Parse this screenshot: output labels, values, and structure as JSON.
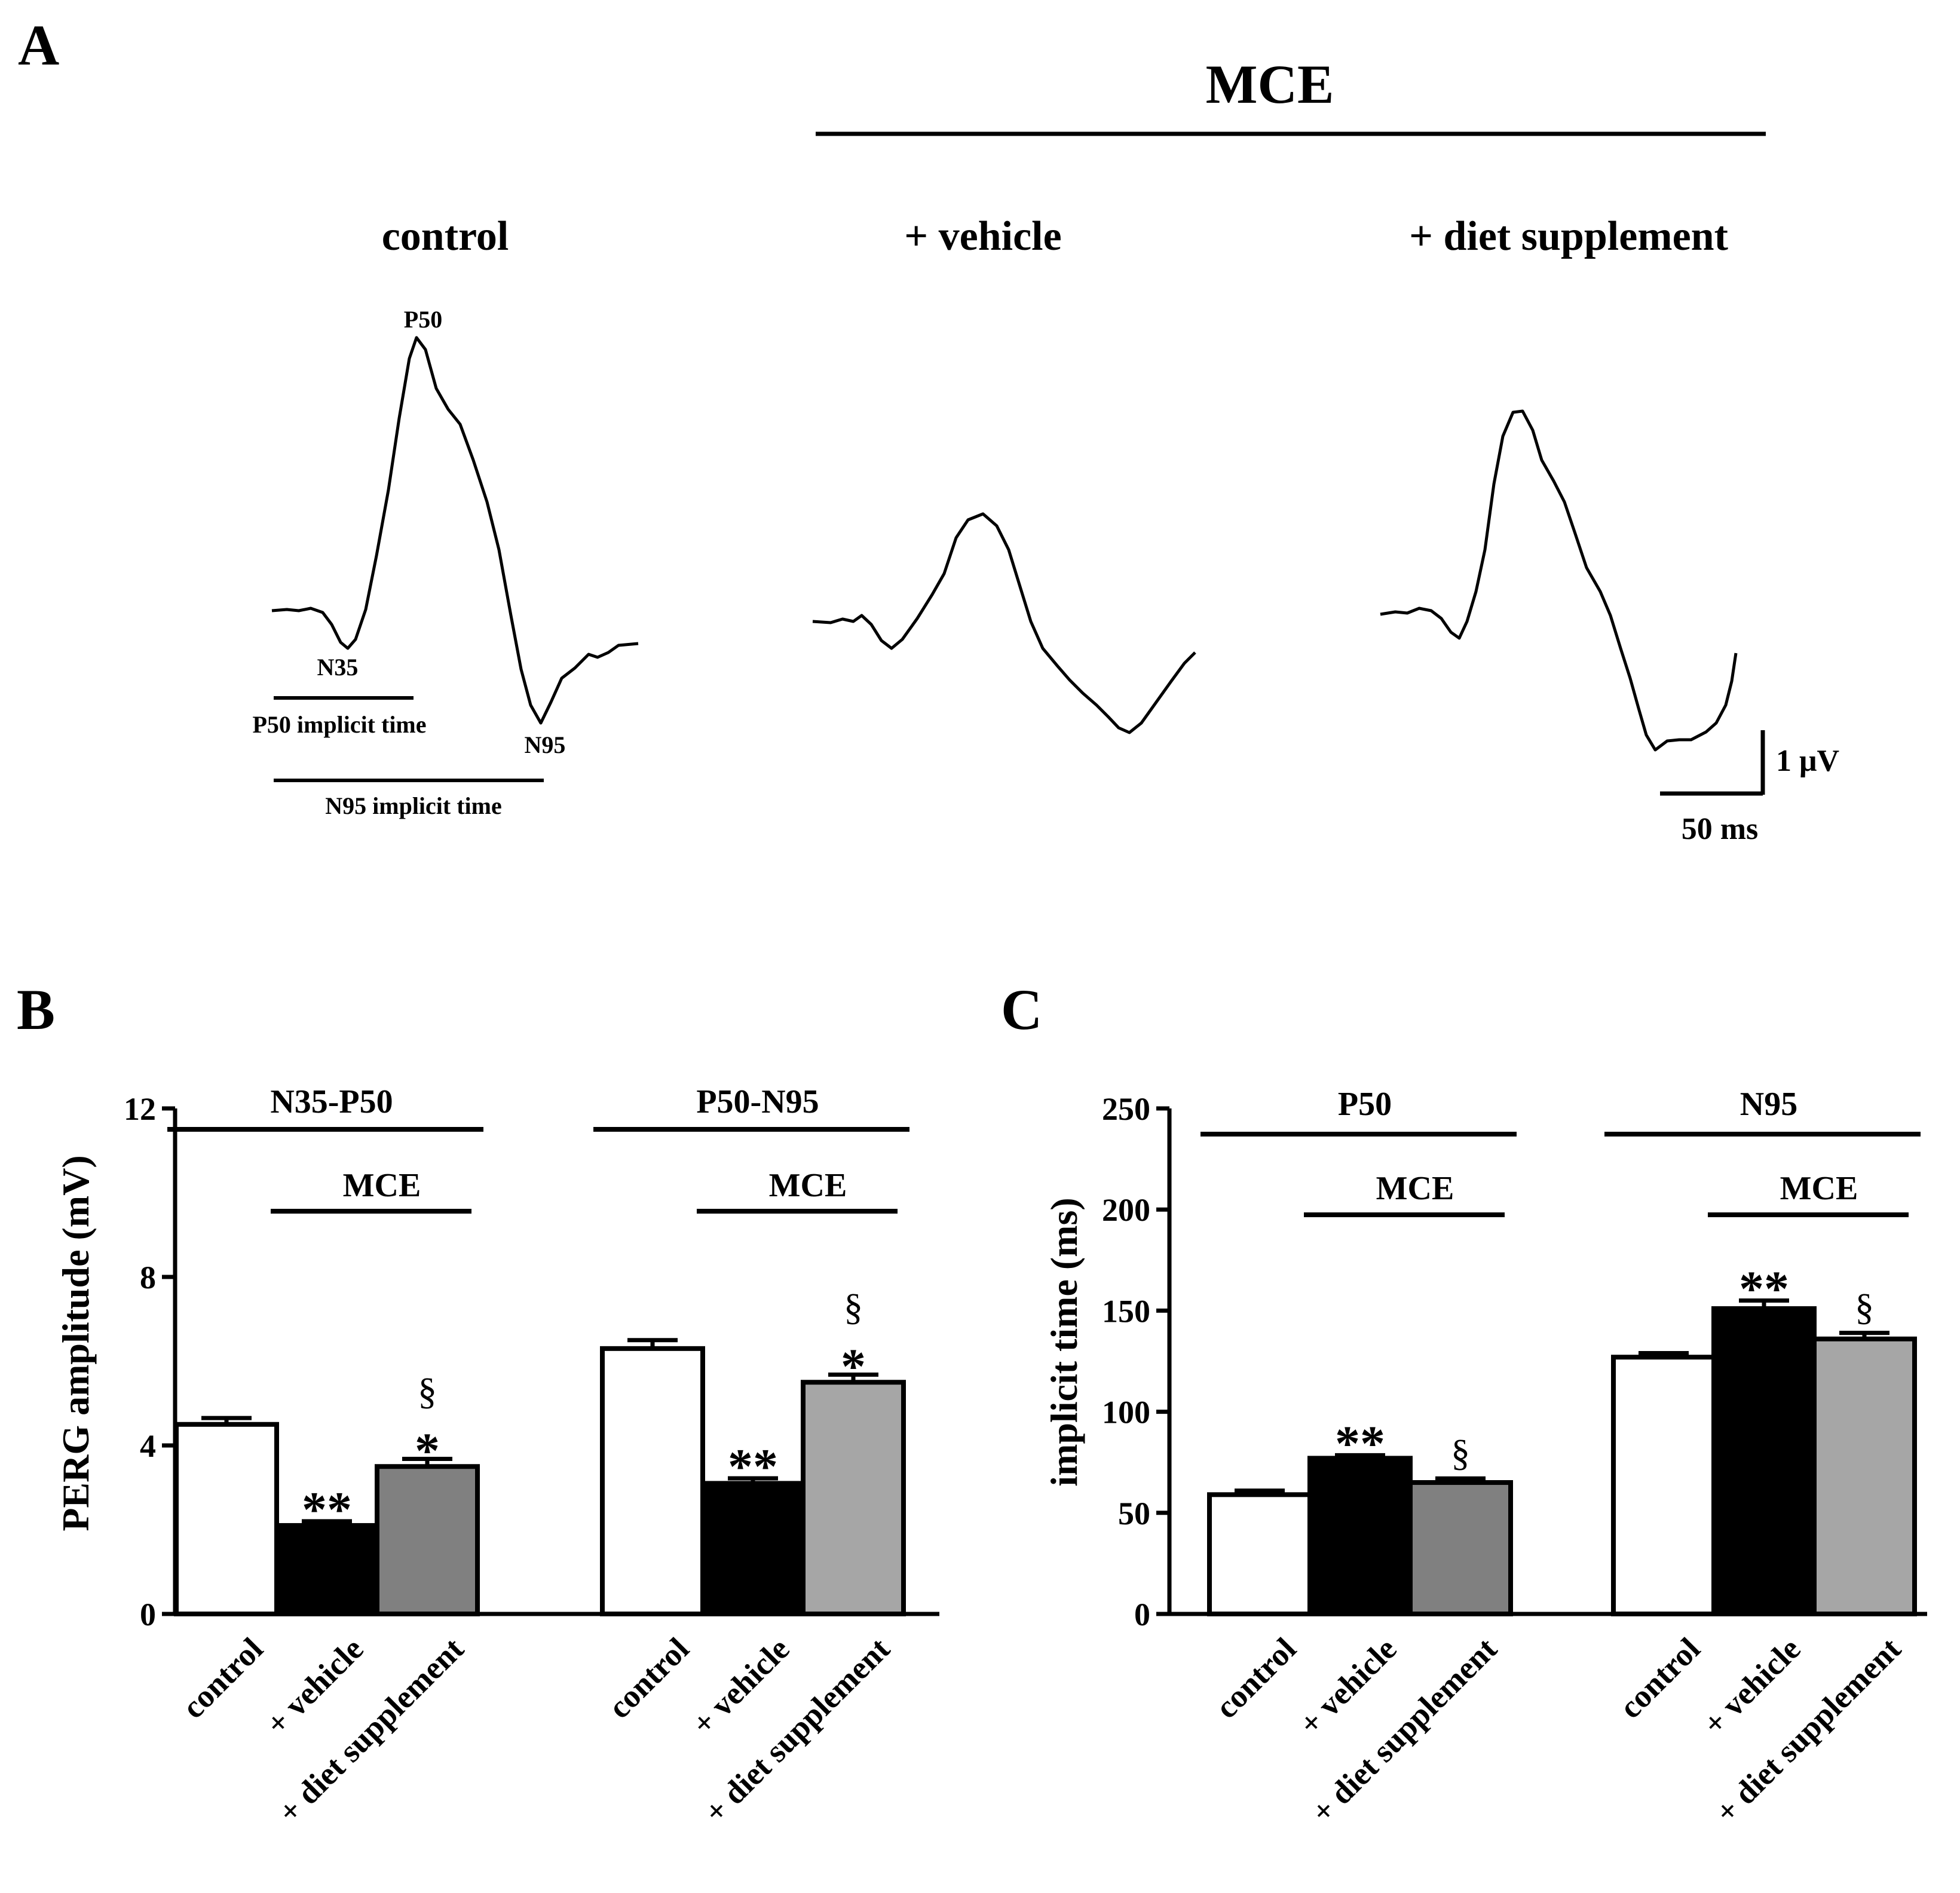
{
  "panel_a": {
    "letter": "A",
    "mce_header": "MCE",
    "titles": [
      "control",
      "+ vehicle",
      "+ diet supplement"
    ],
    "peak_labels": {
      "p50": "P50",
      "n35": "N35",
      "n95": "N95"
    },
    "time_labels": {
      "p50": "P50 implicit time",
      "n95": "N95 implicit time"
    },
    "scale_bar": {
      "amplitude_label": "1 μV",
      "time_label": "50 ms"
    }
  },
  "panel_b": {
    "letter": "B"
  },
  "panel_c": {
    "letter": "C"
  },
  "chart_data": [
    {
      "type": "bar",
      "panel": "B",
      "ylabel": "PERG amplitude (mV)",
      "ylim": [
        0,
        12
      ],
      "yticks": [
        0,
        4,
        8,
        12
      ],
      "groups": [
        {
          "label": "N35-P50",
          "bracket_label": "MCE",
          "categories": [
            "control",
            "+ vehicle",
            "+ diet supplement"
          ],
          "values": [
            4.5,
            2.1,
            3.5
          ],
          "errors": [
            0.15,
            0.1,
            0.18
          ],
          "colors": [
            "#ffffff",
            "#000000",
            "#808080"
          ],
          "significance": [
            "",
            "**",
            "*"
          ],
          "significance_vs_vehicle": [
            "",
            "",
            "§"
          ]
        },
        {
          "label": "P50-N95",
          "bracket_label": "MCE",
          "categories": [
            "control",
            "+ vehicle",
            "+ diet supplement"
          ],
          "values": [
            6.3,
            3.1,
            5.5
          ],
          "errors": [
            0.2,
            0.12,
            0.18
          ],
          "colors": [
            "#ffffff",
            "#000000",
            "#a6a6a6"
          ],
          "significance": [
            "",
            "**",
            "*"
          ],
          "significance_vs_vehicle": [
            "",
            "",
            "§"
          ]
        }
      ]
    },
    {
      "type": "bar",
      "panel": "C",
      "ylabel": "implicit time (ms)",
      "ylim": [
        0,
        250
      ],
      "yticks": [
        0,
        50,
        100,
        150,
        200,
        250
      ],
      "groups": [
        {
          "label": "P50",
          "bracket_label": "MCE",
          "categories": [
            "control",
            "+ vehicle",
            "+ diet supplement"
          ],
          "values": [
            59,
            77,
            65
          ],
          "errors": [
            2,
            1.5,
            2
          ],
          "colors": [
            "#ffffff",
            "#000000",
            "#808080"
          ],
          "significance": [
            "",
            "**",
            ""
          ],
          "significance_vs_vehicle": [
            "",
            "",
            "§"
          ]
        },
        {
          "label": "N95",
          "bracket_label": "MCE",
          "categories": [
            "control",
            "+ vehicle",
            "+ diet supplement"
          ],
          "values": [
            127,
            151,
            136
          ],
          "errors": [
            2,
            4,
            3
          ],
          "colors": [
            "#ffffff",
            "#000000",
            "#a6a6a6"
          ],
          "significance": [
            "",
            "**",
            ""
          ],
          "significance_vs_vehicle": [
            "",
            "",
            "§"
          ]
        }
      ]
    }
  ]
}
